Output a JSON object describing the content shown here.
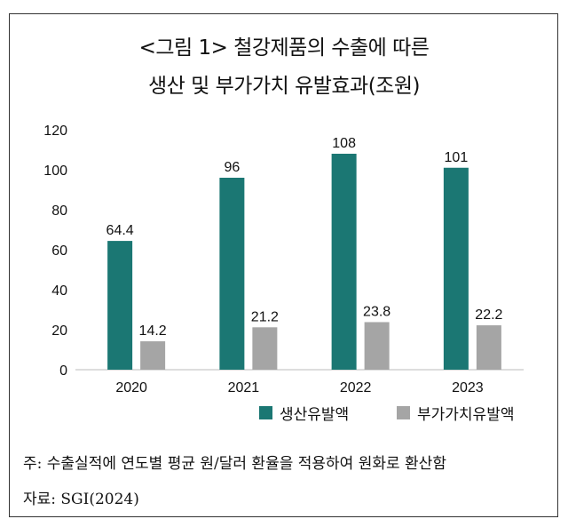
{
  "title_line1": "<그림 1> 철강제품의 수출에 따른",
  "title_line2": "생산 및 부가가치 유발효과(조원)",
  "chart_data": {
    "type": "bar",
    "title": "<그림 1> 철강제품의 수출에 따른 생산 및 부가가치 유발효과(조원)",
    "categories": [
      "2020",
      "2021",
      "2022",
      "2023"
    ],
    "series": [
      {
        "name": "생산유발액",
        "values": [
          64.4,
          96,
          108,
          101
        ],
        "labels": [
          "64.4",
          "96",
          "108",
          "101"
        ],
        "color": "#1b7773"
      },
      {
        "name": "부가가치유발액",
        "values": [
          14.2,
          21.2,
          23.8,
          22.2
        ],
        "labels": [
          "14.2",
          "21.2",
          "23.8",
          "22.2"
        ],
        "color": "#a5a5a5"
      }
    ],
    "ylim": [
      0,
      120
    ],
    "yticks": [
      "0",
      "20",
      "40",
      "60",
      "80",
      "100",
      "120"
    ],
    "grid": false,
    "legend": "bottom-right"
  },
  "note": "주: 수출실적에 연도별 평균 원/달러 환율을 적용하여 원화로 환산함",
  "source": "자료: SGI(2024)"
}
